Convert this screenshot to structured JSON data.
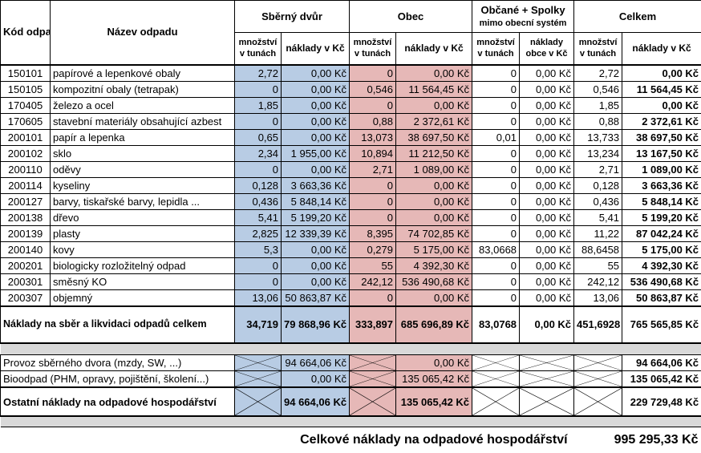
{
  "headers": {
    "kod": "Kód odpadu",
    "nazev": "Název odpadu",
    "sberny_dvur": "Sběrný dvůr",
    "obec": "Obec",
    "obcane_line1": "Občané + Spolky",
    "obcane_line2": "mimo obecní systém",
    "celkem": "Celkem",
    "mnozstvi_1": "množství",
    "mnozstvi_2": "v tunách",
    "naklady": "náklady v Kč",
    "naklady_obce_1": "náklady",
    "naklady_obce_2": "obce v Kč"
  },
  "rows": [
    {
      "kod": "150101",
      "nazev": "papírové a lepenkové obaly",
      "sd_t": "2,72",
      "sd_k": "0,00 Kč",
      "ob_t": "0",
      "ob_k": "0,00 Kč",
      "os_t": "0",
      "os_k": "0,00 Kč",
      "ce_t": "2,72",
      "ce_k": "0,00 Kč"
    },
    {
      "kod": "150105",
      "nazev": "kompozitní obaly (tetrapak)",
      "sd_t": "0",
      "sd_k": "0,00 Kč",
      "ob_t": "0,546",
      "ob_k": "11 564,45 Kč",
      "os_t": "0",
      "os_k": "0,00 Kč",
      "ce_t": "0,546",
      "ce_k": "11 564,45 Kč"
    },
    {
      "kod": "170405",
      "nazev": "železo a ocel",
      "sd_t": "1,85",
      "sd_k": "0,00 Kč",
      "ob_t": "0",
      "ob_k": "0,00 Kč",
      "os_t": "0",
      "os_k": "0,00 Kč",
      "ce_t": "1,85",
      "ce_k": "0,00 Kč"
    },
    {
      "kod": "170605",
      "nazev": "stavební materiály obsahující azbest",
      "sd_t": "0",
      "sd_k": "0,00 Kč",
      "ob_t": "0,88",
      "ob_k": "2 372,61 Kč",
      "os_t": "0",
      "os_k": "0,00 Kč",
      "ce_t": "0,88",
      "ce_k": "2 372,61 Kč"
    },
    {
      "kod": "200101",
      "nazev": "papír a lepenka",
      "sd_t": "0,65",
      "sd_k": "0,00 Kč",
      "ob_t": "13,073",
      "ob_k": "38 697,50 Kč",
      "os_t": "0,01",
      "os_k": "0,00 Kč",
      "ce_t": "13,733",
      "ce_k": "38 697,50 Kč"
    },
    {
      "kod": "200102",
      "nazev": "sklo",
      "sd_t": "2,34",
      "sd_k": "1 955,00 Kč",
      "ob_t": "10,894",
      "ob_k": "11 212,50 Kč",
      "os_t": "0",
      "os_k": "0,00 Kč",
      "ce_t": "13,234",
      "ce_k": "13 167,50 Kč"
    },
    {
      "kod": "200110",
      "nazev": "oděvy",
      "sd_t": "0",
      "sd_k": "0,00 Kč",
      "ob_t": "2,71",
      "ob_k": "1 089,00 Kč",
      "os_t": "0",
      "os_k": "0,00 Kč",
      "ce_t": "2,71",
      "ce_k": "1 089,00 Kč"
    },
    {
      "kod": "200114",
      "nazev": "kyseliny",
      "sd_t": "0,128",
      "sd_k": "3 663,36 Kč",
      "ob_t": "0",
      "ob_k": "0,00 Kč",
      "os_t": "0",
      "os_k": "0,00 Kč",
      "ce_t": "0,128",
      "ce_k": "3 663,36 Kč"
    },
    {
      "kod": "200127",
      "nazev": "barvy, tiskařské barvy, lepidla ...",
      "sd_t": "0,436",
      "sd_k": "5 848,14 Kč",
      "ob_t": "0",
      "ob_k": "0,00 Kč",
      "os_t": "0",
      "os_k": "0,00 Kč",
      "ce_t": "0,436",
      "ce_k": "5 848,14 Kč"
    },
    {
      "kod": "200138",
      "nazev": "dřevo",
      "sd_t": "5,41",
      "sd_k": "5 199,20 Kč",
      "ob_t": "0",
      "ob_k": "0,00 Kč",
      "os_t": "0",
      "os_k": "0,00 Kč",
      "ce_t": "5,41",
      "ce_k": "5 199,20 Kč"
    },
    {
      "kod": "200139",
      "nazev": "plasty",
      "sd_t": "2,825",
      "sd_k": "12 339,39 Kč",
      "ob_t": "8,395",
      "ob_k": "74 702,85 Kč",
      "os_t": "0",
      "os_k": "0,00 Kč",
      "ce_t": "11,22",
      "ce_k": "87 042,24 Kč"
    },
    {
      "kod": "200140",
      "nazev": "kovy",
      "sd_t": "5,3",
      "sd_k": "0,00 Kč",
      "ob_t": "0,279",
      "ob_k": "5 175,00 Kč",
      "os_t": "83,0668",
      "os_k": "0,00 Kč",
      "ce_t": "88,6458",
      "ce_k": "5 175,00 Kč"
    },
    {
      "kod": "200201",
      "nazev": "biologicky rozložitelný odpad",
      "sd_t": "0",
      "sd_k": "0,00 Kč",
      "ob_t": "55",
      "ob_k": "4 392,30 Kč",
      "os_t": "0",
      "os_k": "0,00 Kč",
      "ce_t": "55",
      "ce_k": "4 392,30 Kč"
    },
    {
      "kod": "200301",
      "nazev": "směsný KO",
      "sd_t": "0",
      "sd_k": "0,00 Kč",
      "ob_t": "242,12",
      "ob_k": "536 490,68 Kč",
      "os_t": "0",
      "os_k": "0,00 Kč",
      "ce_t": "242,12",
      "ce_k": "536 490,68 Kč"
    },
    {
      "kod": "200307",
      "nazev": "objemný",
      "sd_t": "13,06",
      "sd_k": "50 863,87 Kč",
      "ob_t": "0",
      "ob_k": "0,00 Kč",
      "os_t": "0",
      "os_k": "0,00 Kč",
      "ce_t": "13,06",
      "ce_k": "50 863,87 Kč"
    }
  ],
  "total_row": {
    "label": "Náklady na sběr a likvidaci odpadů celkem",
    "sd_t": "34,719",
    "sd_k": "79 868,96 Kč",
    "ob_t": "333,897",
    "ob_k": "685 696,89 Kč",
    "os_t": "83,0768",
    "os_k": "0,00 Kč",
    "ce_t": "451,6928",
    "ce_k": "765 565,85 Kč"
  },
  "other_rows": [
    {
      "label": "Provoz sběrného dvora (mzdy, SW, ...)",
      "sd_k": "94 664,06 Kč",
      "ob_k": "0,00 Kč",
      "ce_k": "94 664,06 Kč"
    },
    {
      "label": "Bioodpad (PHM, opravy, pojištění, školení...)",
      "sd_k": "0,00 Kč",
      "ob_k": "135 065,42 Kč",
      "ce_k": "135 065,42 Kč"
    }
  ],
  "other_total": {
    "label": "Ostatní náklady na odpadové hospodářství",
    "sd_k": "94 664,06 Kč",
    "ob_k": "135 065,42 Kč",
    "ce_k": "229 729,48 Kč"
  },
  "grand_total": {
    "label": "Celkové náklady na odpadové hospodářství",
    "value": "995 295,33 Kč"
  },
  "colors": {
    "sberny_dvur": "#b8cce4",
    "obec": "#e6b8b7",
    "separator": "#d9d9d9"
  }
}
